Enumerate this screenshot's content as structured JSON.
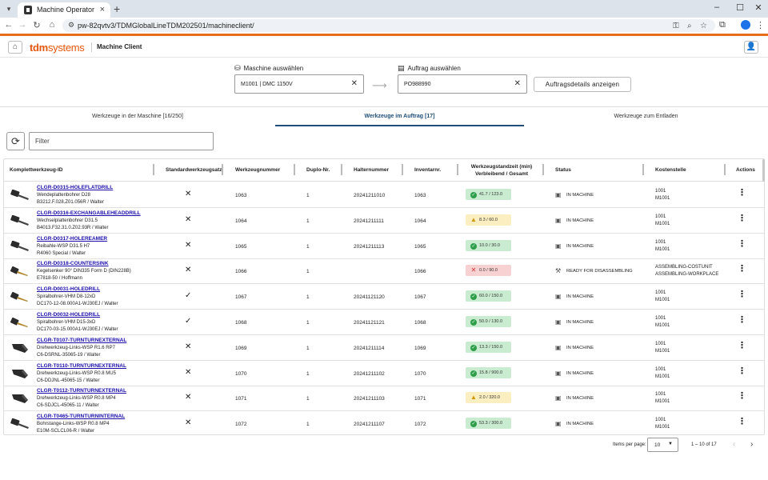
{
  "browser": {
    "tab_title": "Machine Operator",
    "url": "pw-82qvtv3/TDMGlobalLineTDM202501/machineclient/"
  },
  "app": {
    "logo_bold": "tdm",
    "logo_rest": "systems",
    "title": "Machine Client"
  },
  "selection": {
    "machine_label": "Maschine auswählen",
    "machine_value": "M1001 | DMC 1150V",
    "order_label": "Auftrag auswählen",
    "order_value": "PO988990",
    "details_button": "Auftragsdetails anzeigen"
  },
  "tabs": [
    {
      "label": "Werkzeuge in der Maschine [16/250]",
      "active": false
    },
    {
      "label": "Werkzeuge im Auftrag [17]",
      "active": true
    },
    {
      "label": "Werkzeuge zum Entladen",
      "active": false
    }
  ],
  "filter": {
    "placeholder": "Filter"
  },
  "table": {
    "headers": {
      "id": "Komplettwerkzeug-ID",
      "std": "Standardwerkzeugsatz",
      "wz": "Werkzeugnummer",
      "duplo": "Duplo-Nr.",
      "halter": "Halternummer",
      "inv": "Inventarnr.",
      "life_1": "Werkzeugstandzeit (min)",
      "life_2": "Verbleibend / Gesamt",
      "status": "Status",
      "kost": "Kostenstelle",
      "actions": "Actions"
    },
    "rows": [
      {
        "id": "CLGR-D0315-HOLEFLATDRILL",
        "d1": "Wendeplattenbohrer D28",
        "d2": "B3212.F.028.Z01.056R / Walter",
        "std": "✕",
        "wz": "1063",
        "duplo": "1",
        "halter": "20241211010",
        "inv": "1063",
        "life": "41.7 / 123.0",
        "life_state": "ok",
        "status": "IN MACHINE",
        "k1": "1001",
        "k2": "M1001",
        "tool": "drill-a"
      },
      {
        "id": "CLGR-D0316-EXCHANGABLEHEADDRILL",
        "d1": "Wechselplattenbohrer D31.5",
        "d2": "B4013.F32.31.0.Z02.93R / Walter",
        "std": "✕",
        "wz": "1064",
        "duplo": "1",
        "halter": "20241211111",
        "inv": "1064",
        "life": "8.3 / 60.0",
        "life_state": "warn",
        "status": "IN MACHINE",
        "k1": "1001",
        "k2": "M1001",
        "tool": "drill-a"
      },
      {
        "id": "CLGR-D0317-HOLEREAMER",
        "d1": "Reibahle-WSP D31.5 H7",
        "d2": "R4060 Special / Walter",
        "std": "✕",
        "wz": "1065",
        "duplo": "1",
        "halter": "20241211113",
        "inv": "1065",
        "life": "10.0 / 30.0",
        "life_state": "ok",
        "status": "IN MACHINE",
        "k1": "1001",
        "k2": "M1001",
        "tool": "drill-a"
      },
      {
        "id": "CLGR-D0318-COUNTERSINK",
        "d1": "Kegelsenker 90° DIN335 Form D (DIN228B)",
        "d2": "E7818-50 / Hoffmann",
        "std": "✕",
        "wz": "1066",
        "duplo": "1",
        "halter": "",
        "inv": "1066",
        "life": "0.0 / 90.0",
        "life_state": "bad",
        "status": "READY FOR DISASSEMBLING",
        "k1": "ASSEMBLING-COSTUNIT",
        "k2": "ASSEMBLING-WORKPLACE",
        "tool": "drill-b"
      },
      {
        "id": "CLGR-D0031-HOLEDRILL",
        "d1": "Spiralbohrer-VHM D8-12xD",
        "d2": "DC170-12-08.000A1-WJ30EJ / Walter",
        "std": "✓",
        "wz": "1067",
        "duplo": "1",
        "halter": "20241121120",
        "inv": "1067",
        "life": "60.0 / 150.0",
        "life_state": "ok",
        "status": "IN MACHINE",
        "k1": "1001",
        "k2": "M1001",
        "tool": "drill-b"
      },
      {
        "id": "CLGR-D0032-HOLEDRILL",
        "d1": "Spiralbohrer-VHM D15-3xD",
        "d2": "DC170-03-15.000A1-WJ30EJ / Walter",
        "std": "✓",
        "wz": "1068",
        "duplo": "1",
        "halter": "20241121121",
        "inv": "1068",
        "life": "50.0 / 130.0",
        "life_state": "ok",
        "status": "IN MACHINE",
        "k1": "1001",
        "k2": "M1001",
        "tool": "drill-b"
      },
      {
        "id": "CLGR-T0107-TURNTURNEXTERNAL",
        "d1": "Drehwerkzeug-Links-WSP R1.6 RP7",
        "d2": "C6-DSRNL-35065-19 / Walter",
        "std": "✕",
        "wz": "1069",
        "duplo": "1",
        "halter": "20241211114",
        "inv": "1069",
        "life": "13.3 / 150.0",
        "life_state": "ok",
        "status": "IN MACHINE",
        "k1": "1001",
        "k2": "M1001",
        "tool": "turn"
      },
      {
        "id": "CLGR-T0110-TURNTURNEXTERNAL",
        "d1": "Drehwerkzeug-Links-WSP R0.8 MU5",
        "d2": "C6-DDJNL-45065-15 / Walter",
        "std": "✕",
        "wz": "1070",
        "duplo": "1",
        "halter": "20241211102",
        "inv": "1070",
        "life": "15.8 / 900.0",
        "life_state": "ok",
        "status": "IN MACHINE",
        "k1": "1001",
        "k2": "M1001",
        "tool": "turn"
      },
      {
        "id": "CLGR-T0112-TURNTURNEXTERNAL",
        "d1": "Drehwerkzeug-Links-WSP R0.8 MP4",
        "d2": "C6-SDJCL-45065-11 / Walter",
        "std": "✕",
        "wz": "1071",
        "duplo": "1",
        "halter": "20241211103",
        "inv": "1071",
        "life": "2.0 / 320.0",
        "life_state": "warn",
        "status": "IN MACHINE",
        "k1": "1001",
        "k2": "M1001",
        "tool": "turn"
      },
      {
        "id": "CLGR-T0465-TURNTURNINTERNAL",
        "d1": "Bohrstange-Links-WSP R0.8 MP4",
        "d2": "E10M-SCLCL06-R / Walter",
        "std": "✕",
        "wz": "1072",
        "duplo": "1",
        "halter": "20241211107",
        "inv": "1072",
        "life": "53.3 / 300.0",
        "life_state": "ok",
        "status": "IN MACHINE",
        "k1": "1001",
        "k2": "M1001",
        "tool": "drill-a"
      }
    ]
  },
  "pager": {
    "items_label": "Items per page:",
    "page_size": "10",
    "range": "1 – 10 of 17"
  }
}
